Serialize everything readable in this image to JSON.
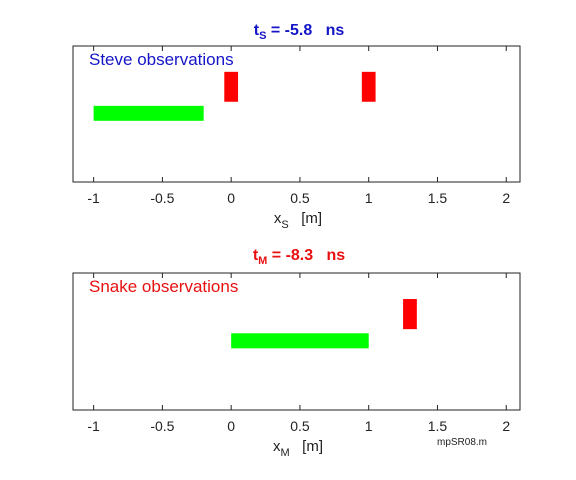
{
  "colors": {
    "steve": "#1515c8",
    "snake": "#e81010",
    "green": "#00ff00",
    "red": "#ff0000",
    "axis": "#222222"
  },
  "footer": "mpSR08.m",
  "chart_data": [
    {
      "type": "bar",
      "title": {
        "prefix": "t",
        "sub": "S",
        "text": " = -5.8   ns"
      },
      "xlabel": {
        "main": "x",
        "sub": "S",
        "unit": "   [m]"
      },
      "inner_label": "Steve observations",
      "xlim": [
        -1.15,
        2.1
      ],
      "ylim": [
        0,
        1
      ],
      "xticks": [
        -1,
        -0.5,
        0,
        0.5,
        1,
        1.5,
        2
      ],
      "xtick_labels": [
        "-1",
        "-0.5",
        "0",
        "0.5",
        "1",
        "1.5",
        "2"
      ],
      "grid": false,
      "bars": [
        {
          "name": "green-rod",
          "x0": -1.0,
          "x1": -0.2,
          "y0": 0.45,
          "y1": 0.56,
          "color": "green"
        },
        {
          "name": "red-marker-left",
          "x0": -0.05,
          "x1": 0.05,
          "y0": 0.59,
          "y1": 0.81,
          "color": "red"
        },
        {
          "name": "red-marker-right",
          "x0": 0.95,
          "x1": 1.05,
          "y0": 0.59,
          "y1": 0.81,
          "color": "red"
        }
      ]
    },
    {
      "type": "bar",
      "title": {
        "prefix": "t",
        "sub": "M",
        "text": " = -8.3   ns"
      },
      "xlabel": {
        "main": "x",
        "sub": "M",
        "unit": "   [m]"
      },
      "inner_label": "Snake observations",
      "xlim": [
        -1.15,
        2.1
      ],
      "ylim": [
        0,
        1
      ],
      "xticks": [
        -1,
        -0.5,
        0,
        0.5,
        1,
        1.5,
        2
      ],
      "xtick_labels": [
        "-1",
        "-0.5",
        "0",
        "0.5",
        "1",
        "1.5",
        "2"
      ],
      "grid": false,
      "bars": [
        {
          "name": "green-rod",
          "x0": 0.0,
          "x1": 1.0,
          "y0": 0.45,
          "y1": 0.56,
          "color": "green"
        },
        {
          "name": "red-marker",
          "x0": 1.25,
          "x1": 1.35,
          "y0": 0.59,
          "y1": 0.81,
          "color": "red"
        }
      ]
    }
  ]
}
